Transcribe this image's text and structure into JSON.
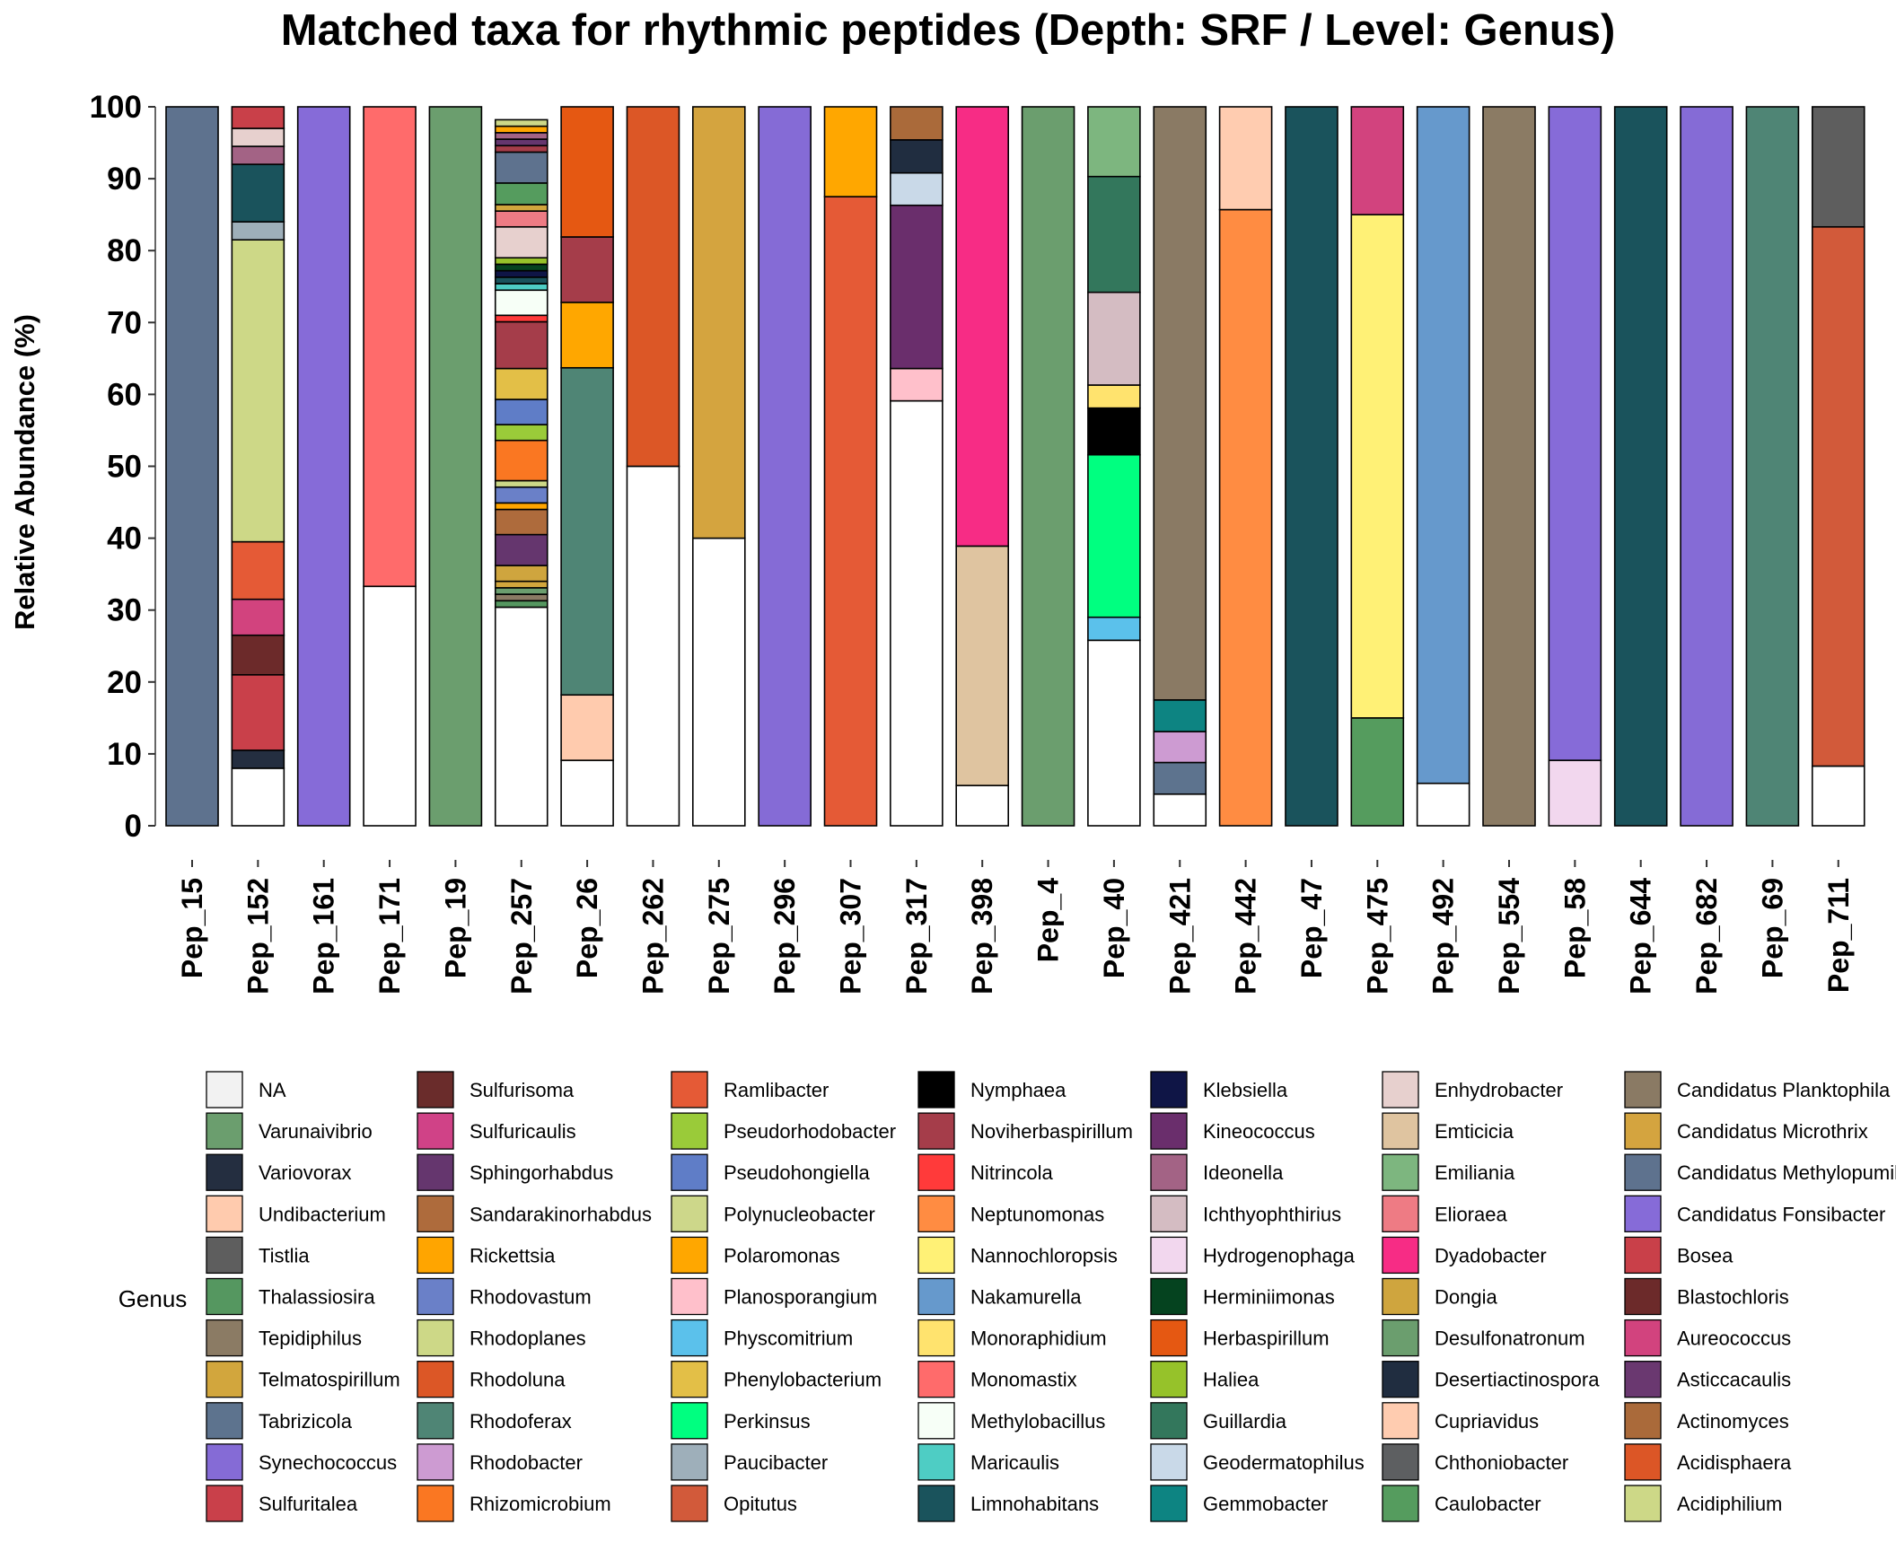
{
  "chart_data": {
    "type": "bar",
    "stacked": true,
    "title": "Matched taxa for rhythmic peptides (Depth: SRF / Level: Genus)",
    "ylabel": "Relative Abundance (%)",
    "xlabel": "",
    "ylim": [
      0,
      100
    ],
    "yticks": [
      0,
      10,
      20,
      30,
      40,
      50,
      60,
      70,
      80,
      90,
      100
    ],
    "legend_title": "Genus",
    "legend_position": "bottom",
    "categories": [
      "Pep_15",
      "Pep_152",
      "Pep_161",
      "Pep_171",
      "Pep_19",
      "Pep_257",
      "Pep_26",
      "Pep_262",
      "Pep_275",
      "Pep_296",
      "Pep_307",
      "Pep_317",
      "Pep_398",
      "Pep_4",
      "Pep_40",
      "Pep_421",
      "Pep_442",
      "Pep_47",
      "Pep_475",
      "Pep_492",
      "Pep_554",
      "Pep_58",
      "Pep_644",
      "Pep_682",
      "Pep_69",
      "Pep_711"
    ],
    "genera": [
      {
        "name": "NA",
        "color": "#F2F2F2"
      },
      {
        "name": "Varunaivibrio",
        "color": "#6B9E6E"
      },
      {
        "name": "Variovorax",
        "color": "#242E40"
      },
      {
        "name": "Undibacterium",
        "color": "#FFCBAE"
      },
      {
        "name": "Tistlia",
        "color": "#5E5E5E"
      },
      {
        "name": "Thalassiosira",
        "color": "#559760"
      },
      {
        "name": "Tepidiphilus",
        "color": "#8B7B64"
      },
      {
        "name": "Telmatospirillum",
        "color": "#D2A63D"
      },
      {
        "name": "Tabrizicola",
        "color": "#5D738E"
      },
      {
        "name": "Synechococcus",
        "color": "#856BD6"
      },
      {
        "name": "Sulfuritalea",
        "color": "#C9404A"
      },
      {
        "name": "Sulfurisoma",
        "color": "#6A2C2B"
      },
      {
        "name": "Sulfuricaulis",
        "color": "#D04287"
      },
      {
        "name": "Sphingorhabdus",
        "color": "#65366E"
      },
      {
        "name": "Sandarakinorhabdus",
        "color": "#AE6B3C"
      },
      {
        "name": "Rickettsia",
        "color": "#FFA500"
      },
      {
        "name": "Rhodovastum",
        "color": "#6A80C8"
      },
      {
        "name": "Rhodoplanes",
        "color": "#CDD887"
      },
      {
        "name": "Rhodoluna",
        "color": "#DC5726"
      },
      {
        "name": "Rhodoferax",
        "color": "#4F8575"
      },
      {
        "name": "Rhodobacter",
        "color": "#CD9BD2"
      },
      {
        "name": "Rhizomicrobium",
        "color": "#FA7722"
      },
      {
        "name": "Ramlibacter",
        "color": "#E55A36"
      },
      {
        "name": "Pseudorhodobacter",
        "color": "#9ACB39"
      },
      {
        "name": "Pseudohongiella",
        "color": "#5F7DC7"
      },
      {
        "name": "Polynucleobacter",
        "color": "#CDD78A"
      },
      {
        "name": "Polaromonas",
        "color": "#FFA700"
      },
      {
        "name": "Planosporangium",
        "color": "#FFC0CB"
      },
      {
        "name": "Physcomitrium",
        "color": "#5BC1EB"
      },
      {
        "name": "Phenylobacterium",
        "color": "#E3BF47"
      },
      {
        "name": "Perkinsus",
        "color": "#00FF80"
      },
      {
        "name": "Paucibacter",
        "color": "#9EAFBA"
      },
      {
        "name": "Opitutus",
        "color": "#D25A3A"
      },
      {
        "name": "Nymphaea",
        "color": "#000000"
      },
      {
        "name": "Noviherbaspirillum",
        "color": "#A53D4A"
      },
      {
        "name": "Nitrincola",
        "color": "#FF3A3A"
      },
      {
        "name": "Neptunomonas",
        "color": "#FF8C42"
      },
      {
        "name": "Nannochloropsis",
        "color": "#FFF176"
      },
      {
        "name": "Nakamurella",
        "color": "#6699CC"
      },
      {
        "name": "Monoraphidium",
        "color": "#FFE36E"
      },
      {
        "name": "Monomastix",
        "color": "#FF6B6B"
      },
      {
        "name": "Methylobacillus",
        "color": "#F7FFF7"
      },
      {
        "name": "Maricaulis",
        "color": "#4ECDC4"
      },
      {
        "name": "Limnohabitans",
        "color": "#1A535C"
      },
      {
        "name": "Klebsiella",
        "color": "#0F1546"
      },
      {
        "name": "Kineococcus",
        "color": "#6A2E6C"
      },
      {
        "name": "Ideonella",
        "color": "#A36385"
      },
      {
        "name": "Ichthyophthirius",
        "color": "#D4BCC2"
      },
      {
        "name": "Hydrogenophaga",
        "color": "#F2D7EE"
      },
      {
        "name": "Herminiimonas",
        "color": "#05431F"
      },
      {
        "name": "Herbaspirillum",
        "color": "#E55812"
      },
      {
        "name": "Haliea",
        "color": "#96C22A"
      },
      {
        "name": "Guillardia",
        "color": "#33775C"
      },
      {
        "name": "Geodermatophilus",
        "color": "#C9D9E8"
      },
      {
        "name": "Gemmobacter",
        "color": "#0D8482"
      },
      {
        "name": "Enhydrobacter",
        "color": "#E7D0CE"
      },
      {
        "name": "Emticicia",
        "color": "#DFC4A0"
      },
      {
        "name": "Emiliania",
        "color": "#7DB67F"
      },
      {
        "name": "Elioraea",
        "color": "#EE7B84"
      },
      {
        "name": "Dyadobacter",
        "color": "#F72C85"
      },
      {
        "name": "Dongia",
        "color": "#CFA53E"
      },
      {
        "name": "Desulfonatronum",
        "color": "#6B9E6E"
      },
      {
        "name": "Desertiactinospora",
        "color": "#202D40"
      },
      {
        "name": "Cupriavidus",
        "color": "#FFCCB0"
      },
      {
        "name": "Chthoniobacter",
        "color": "#5D5F61"
      },
      {
        "name": "Caulobacter",
        "color": "#559C5E"
      },
      {
        "name": "Candidatus Planktophila",
        "color": "#8A7A64"
      },
      {
        "name": "Candidatus Microthrix",
        "color": "#D4A43F"
      },
      {
        "name": "Candidatus Methylopumilus",
        "color": "#5E728E"
      },
      {
        "name": "Candidatus Fonsibacter",
        "color": "#866BD8"
      },
      {
        "name": "Bosea",
        "color": "#C94049"
      },
      {
        "name": "Blastochloris",
        "color": "#6C2A2A"
      },
      {
        "name": "Aureococcus",
        "color": "#D2437E"
      },
      {
        "name": "Asticcacaulis",
        "color": "#6A3870"
      },
      {
        "name": "Actinomyces",
        "color": "#AA6A3A"
      },
      {
        "name": "Acidisphaera",
        "color": "#DC5626"
      },
      {
        "name": "Acidiphilium",
        "color": "#CDD887"
      }
    ],
    "bars": [
      {
        "category": "Pep_15",
        "segments": [
          {
            "genus": "Candidatus Methylopumilus",
            "value": 100
          }
        ]
      },
      {
        "category": "Pep_152",
        "segments": [
          {
            "genus": "NA",
            "value": 8.0
          },
          {
            "genus": "Variovorax",
            "value": 2.5
          },
          {
            "genus": "Sulfuritalea",
            "value": 10.5
          },
          {
            "genus": "Blastochloris",
            "value": 5.5
          },
          {
            "genus": "Aureococcus",
            "value": 5.0
          },
          {
            "genus": "Ramlibacter",
            "value": 8.0
          },
          {
            "genus": "Acidiphilium",
            "value": 42.0
          },
          {
            "genus": "Paucibacter",
            "value": 2.5
          },
          {
            "genus": "Limnohabitans",
            "value": 8.0
          },
          {
            "genus": "Ideonella",
            "value": 2.5
          },
          {
            "genus": "Enhydrobacter",
            "value": 2.5
          },
          {
            "genus": "Bosea",
            "value": 3.0
          }
        ]
      },
      {
        "category": "Pep_161",
        "segments": [
          {
            "genus": "Candidatus Fonsibacter",
            "value": 100
          }
        ]
      },
      {
        "category": "Pep_171",
        "segments": [
          {
            "genus": "NA",
            "value": 33.3
          },
          {
            "genus": "Monomastix",
            "value": 66.7
          }
        ]
      },
      {
        "category": "Pep_19",
        "segments": [
          {
            "genus": "Desulfonatronum",
            "value": 100
          }
        ]
      },
      {
        "category": "Pep_257",
        "segments": [
          {
            "genus": "NA",
            "value": 30.4
          },
          {
            "genus": "Thalassiosira",
            "value": 0.9
          },
          {
            "genus": "Tepidiphilus",
            "value": 0.9
          },
          {
            "genus": "Varunaivibrio",
            "value": 0.9
          },
          {
            "genus": "Telmatospirillum",
            "value": 0.9
          },
          {
            "genus": "Dongia",
            "value": 2.2
          },
          {
            "genus": "Sphingorhabdus",
            "value": 4.3
          },
          {
            "genus": "Sandarakinorhabdus",
            "value": 3.5
          },
          {
            "genus": "Rickettsia",
            "value": 0.9
          },
          {
            "genus": "Rhodovastum",
            "value": 2.2
          },
          {
            "genus": "Rhodoplanes",
            "value": 0.9
          },
          {
            "genus": "Rhizomicrobium",
            "value": 5.6
          },
          {
            "genus": "Pseudorhodobacter",
            "value": 2.2
          },
          {
            "genus": "Pseudohongiella",
            "value": 3.5
          },
          {
            "genus": "Phenylobacterium",
            "value": 4.3
          },
          {
            "genus": "Noviherbaspirillum",
            "value": 6.5
          },
          {
            "genus": "Nitrincola",
            "value": 0.9
          },
          {
            "genus": "Methylobacillus",
            "value": 3.5
          },
          {
            "genus": "Maricaulis",
            "value": 0.9
          },
          {
            "genus": "Limnohabitans",
            "value": 0.9
          },
          {
            "genus": "Klebsiella",
            "value": 0.9
          },
          {
            "genus": "Herminiimonas",
            "value": 0.9
          },
          {
            "genus": "Haliea",
            "value": 0.9
          },
          {
            "genus": "Enhydrobacter",
            "value": 4.3
          },
          {
            "genus": "Elioraea",
            "value": 2.2
          },
          {
            "genus": "Telmatospirillum",
            "value": 0.9
          },
          {
            "genus": "Caulobacter",
            "value": 3.0
          },
          {
            "genus": "Candidatus Methylopumilus",
            "value": 4.3
          },
          {
            "genus": "Noviherbaspirillum",
            "value": 0.9
          },
          {
            "genus": "Sphingorhabdus",
            "value": 0.9
          },
          {
            "genus": "Ideonella",
            "value": 0.9
          },
          {
            "genus": "Rickettsia",
            "value": 0.9
          },
          {
            "genus": "Acidiphilium",
            "value": 0.9
          }
        ]
      },
      {
        "category": "Pep_26",
        "segments": [
          {
            "genus": "NA",
            "value": 9.1
          },
          {
            "genus": "Undibacterium",
            "value": 9.1
          },
          {
            "genus": "Rhodoferax",
            "value": 45.5
          },
          {
            "genus": "Polaromonas",
            "value": 9.1
          },
          {
            "genus": "Noviherbaspirillum",
            "value": 9.1
          },
          {
            "genus": "Herbaspirillum",
            "value": 18.1
          }
        ]
      },
      {
        "category": "Pep_262",
        "segments": [
          {
            "genus": "NA",
            "value": 50
          },
          {
            "genus": "Rhodoluna",
            "value": 50
          }
        ]
      },
      {
        "category": "Pep_275",
        "segments": [
          {
            "genus": "NA",
            "value": 40
          },
          {
            "genus": "Candidatus Microthrix",
            "value": 60
          }
        ]
      },
      {
        "category": "Pep_296",
        "segments": [
          {
            "genus": "Synechococcus",
            "value": 100
          }
        ]
      },
      {
        "category": "Pep_307",
        "segments": [
          {
            "genus": "Ramlibacter",
            "value": 87.5
          },
          {
            "genus": "Polaromonas",
            "value": 12.5
          }
        ]
      },
      {
        "category": "Pep_317",
        "segments": [
          {
            "genus": "NA",
            "value": 59.1
          },
          {
            "genus": "Planosporangium",
            "value": 4.5
          },
          {
            "genus": "Kineococcus",
            "value": 22.7
          },
          {
            "genus": "Geodermatophilus",
            "value": 4.5
          },
          {
            "genus": "Desertiactinospora",
            "value": 4.6
          },
          {
            "genus": "Actinomyces",
            "value": 4.6
          }
        ]
      },
      {
        "category": "Pep_398",
        "segments": [
          {
            "genus": "NA",
            "value": 5.6
          },
          {
            "genus": "Emticicia",
            "value": 33.3
          },
          {
            "genus": "Dyadobacter",
            "value": 61.1
          }
        ]
      },
      {
        "category": "Pep_4",
        "segments": [
          {
            "genus": "Varunaivibrio",
            "value": 100
          }
        ]
      },
      {
        "category": "Pep_40",
        "segments": [
          {
            "genus": "NA",
            "value": 25.8
          },
          {
            "genus": "Physcomitrium",
            "value": 3.2
          },
          {
            "genus": "Perkinsus",
            "value": 22.6
          },
          {
            "genus": "Nymphaea",
            "value": 6.5
          },
          {
            "genus": "Monoraphidium",
            "value": 3.2
          },
          {
            "genus": "Ichthyophthirius",
            "value": 12.9
          },
          {
            "genus": "Guillardia",
            "value": 16.1
          },
          {
            "genus": "Emiliania",
            "value": 9.7
          }
        ]
      },
      {
        "category": "Pep_421",
        "segments": [
          {
            "genus": "NA",
            "value": 4.4
          },
          {
            "genus": "Tabrizicola",
            "value": 4.4
          },
          {
            "genus": "Rhodobacter",
            "value": 4.3
          },
          {
            "genus": "Gemmobacter",
            "value": 4.4
          },
          {
            "genus": "Candidatus Planktophila",
            "value": 82.5
          }
        ]
      },
      {
        "category": "Pep_442",
        "segments": [
          {
            "genus": "Neptunomonas",
            "value": 85.7
          },
          {
            "genus": "Cupriavidus",
            "value": 14.3
          }
        ]
      },
      {
        "category": "Pep_47",
        "segments": [
          {
            "genus": "Limnohabitans",
            "value": 100
          }
        ]
      },
      {
        "category": "Pep_475",
        "segments": [
          {
            "genus": "Caulobacter",
            "value": 15
          },
          {
            "genus": "Nannochloropsis",
            "value": 70
          },
          {
            "genus": "Aureococcus",
            "value": 15
          }
        ]
      },
      {
        "category": "Pep_492",
        "segments": [
          {
            "genus": "NA",
            "value": 5.9
          },
          {
            "genus": "Nakamurella",
            "value": 94.1
          }
        ]
      },
      {
        "category": "Pep_554",
        "segments": [
          {
            "genus": "Tepidiphilus",
            "value": 100
          }
        ]
      },
      {
        "category": "Pep_58",
        "segments": [
          {
            "genus": "Hydrogenophaga",
            "value": 9.1
          },
          {
            "genus": "Candidatus Fonsibacter",
            "value": 90.9
          }
        ]
      },
      {
        "category": "Pep_644",
        "segments": [
          {
            "genus": "Limnohabitans",
            "value": 100
          }
        ]
      },
      {
        "category": "Pep_682",
        "segments": [
          {
            "genus": "Synechococcus",
            "value": 100
          }
        ]
      },
      {
        "category": "Pep_69",
        "segments": [
          {
            "genus": "Rhodoferax",
            "value": 100
          }
        ]
      },
      {
        "category": "Pep_711",
        "segments": [
          {
            "genus": "NA",
            "value": 8.3
          },
          {
            "genus": "Opitutus",
            "value": 75.0
          },
          {
            "genus": "Tistlia",
            "value": 16.7
          }
        ]
      }
    ]
  }
}
